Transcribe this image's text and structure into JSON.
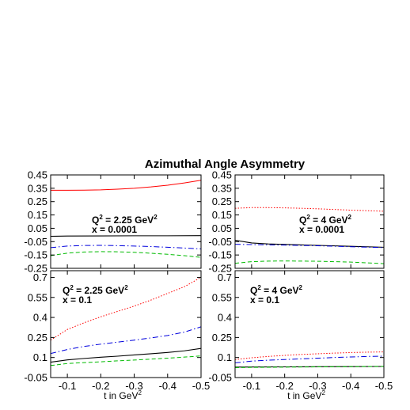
{
  "figure_title": "Azimuthal Angle Asymmetry",
  "colors": {
    "red": "#ff0000",
    "blue": "#0000dd",
    "black": "#000000",
    "green": "#00bb00"
  },
  "chart_data": [
    {
      "type": "line",
      "panel": "top-left",
      "annotation": {
        "line1_prefix": "Q",
        "line1_sup": "2",
        "line1_value": " = 2.25 GeV",
        "line1_unit_sup": "2",
        "line2": "x = 0.0001"
      },
      "xlim": [
        -0.05,
        -0.5
      ],
      "ylim": [
        -0.25,
        0.45
      ],
      "yticks": [
        "-0.25",
        "-0.15",
        "-0.05",
        "0.05",
        "0.15",
        "0.25",
        "0.35",
        "0.45"
      ],
      "xticks": [],
      "xlabel": "",
      "series": [
        {
          "color": "red",
          "style": "solid",
          "x": [
            -0.05,
            -0.1,
            -0.15,
            -0.2,
            -0.25,
            -0.3,
            -0.35,
            -0.4,
            -0.45,
            -0.5
          ],
          "y": [
            0.335,
            0.335,
            0.336,
            0.338,
            0.343,
            0.35,
            0.36,
            0.373,
            0.39,
            0.41
          ]
        },
        {
          "color": "black",
          "style": "solid",
          "x": [
            -0.05,
            -0.1,
            -0.2,
            -0.3,
            -0.4,
            -0.5
          ],
          "y": [
            -0.01,
            -0.008,
            -0.007,
            -0.006,
            -0.006,
            -0.005
          ]
        },
        {
          "color": "blue",
          "style": "dashdot",
          "x": [
            -0.05,
            -0.1,
            -0.15,
            -0.2,
            -0.25,
            -0.3,
            -0.35,
            -0.4,
            -0.45,
            -0.5
          ],
          "y": [
            -0.095,
            -0.083,
            -0.079,
            -0.078,
            -0.08,
            -0.083,
            -0.087,
            -0.092,
            -0.098,
            -0.105
          ]
        },
        {
          "color": "green",
          "style": "dashed",
          "x": [
            -0.05,
            -0.1,
            -0.15,
            -0.2,
            -0.25,
            -0.3,
            -0.35,
            -0.4,
            -0.45,
            -0.5
          ],
          "y": [
            -0.155,
            -0.136,
            -0.128,
            -0.125,
            -0.126,
            -0.13,
            -0.137,
            -0.145,
            -0.155,
            -0.168
          ]
        }
      ]
    },
    {
      "type": "line",
      "panel": "top-right",
      "annotation": {
        "line1_prefix": "Q",
        "line1_sup": "2",
        "line1_value": " = 4 GeV",
        "line1_unit_sup": "2",
        "line2": "x = 0.0001"
      },
      "xlim": [
        -0.05,
        -0.5
      ],
      "ylim": [
        -0.25,
        0.45
      ],
      "yticks": [
        "-0.25",
        "-0.15",
        "-0.05",
        "0.05",
        "0.15",
        "0.25",
        "0.35",
        "0.45"
      ],
      "xticks": [],
      "xlabel": "",
      "series": [
        {
          "color": "red",
          "style": "dotted",
          "x": [
            -0.05,
            -0.1,
            -0.15,
            -0.2,
            -0.25,
            -0.3,
            -0.35,
            -0.4,
            -0.45,
            -0.5
          ],
          "y": [
            0.2,
            0.205,
            0.205,
            0.203,
            0.2,
            0.196,
            0.191,
            0.186,
            0.182,
            0.178
          ]
        },
        {
          "color": "black",
          "style": "solid",
          "x": [
            -0.05,
            -0.1,
            -0.15,
            -0.2,
            -0.3,
            -0.4,
            -0.5
          ],
          "y": [
            -0.04,
            -0.06,
            -0.067,
            -0.071,
            -0.078,
            -0.085,
            -0.092
          ]
        },
        {
          "color": "blue",
          "style": "dashdot",
          "x": [
            -0.05,
            -0.1,
            -0.15,
            -0.2,
            -0.3,
            -0.4,
            -0.5
          ],
          "y": [
            -0.07,
            -0.072,
            -0.074,
            -0.076,
            -0.081,
            -0.088,
            -0.095
          ]
        },
        {
          "color": "green",
          "style": "dashed",
          "x": [
            -0.05,
            -0.1,
            -0.15,
            -0.2,
            -0.3,
            -0.4,
            -0.5
          ],
          "y": [
            -0.212,
            -0.2,
            -0.196,
            -0.195,
            -0.197,
            -0.203,
            -0.215
          ]
        }
      ]
    },
    {
      "type": "line",
      "panel": "bottom-left",
      "annotation": {
        "line1_prefix": "Q",
        "line1_sup": "2",
        "line1_value": " = 2.25 GeV",
        "line1_unit_sup": "2",
        "line2": "x = 0.1"
      },
      "xlim": [
        -0.05,
        -0.5
      ],
      "ylim": [
        -0.05,
        0.75
      ],
      "yticks": [
        "-0.05",
        "0.1",
        "0.25",
        "0.4",
        "0.55",
        "0.7"
      ],
      "xticks": [
        "-0.1",
        "-0.2",
        "-0.3",
        "-0.4",
        "-0.5"
      ],
      "xlabel": {
        "text": "t in GeV",
        "sup": "2"
      },
      "series": [
        {
          "color": "red",
          "style": "dotted",
          "x": [
            -0.05,
            -0.1,
            -0.15,
            -0.2,
            -0.25,
            -0.3,
            -0.35,
            -0.4,
            -0.45,
            -0.5
          ],
          "y": [
            0.23,
            0.31,
            0.36,
            0.405,
            0.445,
            0.485,
            0.53,
            0.58,
            0.63,
            0.7
          ]
        },
        {
          "color": "blue",
          "style": "dashdot",
          "x": [
            -0.05,
            -0.1,
            -0.15,
            -0.2,
            -0.25,
            -0.3,
            -0.35,
            -0.4,
            -0.45,
            -0.5
          ],
          "y": [
            0.13,
            0.16,
            0.183,
            0.2,
            0.215,
            0.23,
            0.247,
            0.265,
            0.29,
            0.33
          ]
        },
        {
          "color": "black",
          "style": "solid",
          "x": [
            -0.05,
            -0.1,
            -0.15,
            -0.2,
            -0.25,
            -0.3,
            -0.35,
            -0.4,
            -0.45,
            -0.5
          ],
          "y": [
            0.065,
            0.082,
            0.093,
            0.102,
            0.11,
            0.119,
            0.128,
            0.138,
            0.15,
            0.168
          ]
        },
        {
          "color": "green",
          "style": "dashed",
          "x": [
            -0.05,
            -0.1,
            -0.15,
            -0.2,
            -0.25,
            -0.3,
            -0.35,
            -0.4,
            -0.45,
            -0.5
          ],
          "y": [
            0.04,
            0.055,
            0.062,
            0.068,
            0.075,
            0.081,
            0.088,
            0.095,
            0.103,
            0.112
          ]
        }
      ]
    },
    {
      "type": "line",
      "panel": "bottom-right",
      "annotation": {
        "line1_prefix": "Q",
        "line1_sup": "2",
        "line1_value": " = 4 GeV",
        "line1_unit_sup": "2",
        "line2": "x = 0.1"
      },
      "xlim": [
        -0.05,
        -0.5
      ],
      "ylim": [
        -0.05,
        0.75
      ],
      "yticks": [
        "-0.05",
        "0.1",
        "0.25",
        "0.4",
        "0.55",
        "0.7"
      ],
      "xticks": [
        "-0.1",
        "-0.2",
        "-0.3",
        "-0.4",
        "-0.5"
      ],
      "xlabel": {
        "text": "t in GeV",
        "sup": "2"
      },
      "series": [
        {
          "color": "red",
          "style": "dotted",
          "x": [
            -0.05,
            -0.1,
            -0.15,
            -0.2,
            -0.25,
            -0.3,
            -0.35,
            -0.4,
            -0.45,
            -0.5
          ],
          "y": [
            0.085,
            0.098,
            0.108,
            0.116,
            0.123,
            0.128,
            0.133,
            0.137,
            0.14,
            0.142
          ]
        },
        {
          "color": "blue",
          "style": "dashdot",
          "x": [
            -0.05,
            -0.1,
            -0.15,
            -0.2,
            -0.25,
            -0.3,
            -0.35,
            -0.4,
            -0.45,
            -0.5
          ],
          "y": [
            0.06,
            0.073,
            0.08,
            0.085,
            0.09,
            0.095,
            0.1,
            0.104,
            0.108,
            0.11
          ]
        },
        {
          "color": "black",
          "style": "solid",
          "x": [
            -0.05,
            -0.1,
            -0.2,
            -0.3,
            -0.4,
            -0.5
          ],
          "y": [
            0.028,
            0.029,
            0.03,
            0.031,
            0.032,
            0.033
          ]
        },
        {
          "color": "green",
          "style": "dashed",
          "x": [
            -0.05,
            -0.1,
            -0.2,
            -0.3,
            -0.4,
            -0.5
          ],
          "y": [
            0.024,
            0.026,
            0.028,
            0.03,
            0.032,
            0.034
          ]
        }
      ]
    }
  ]
}
